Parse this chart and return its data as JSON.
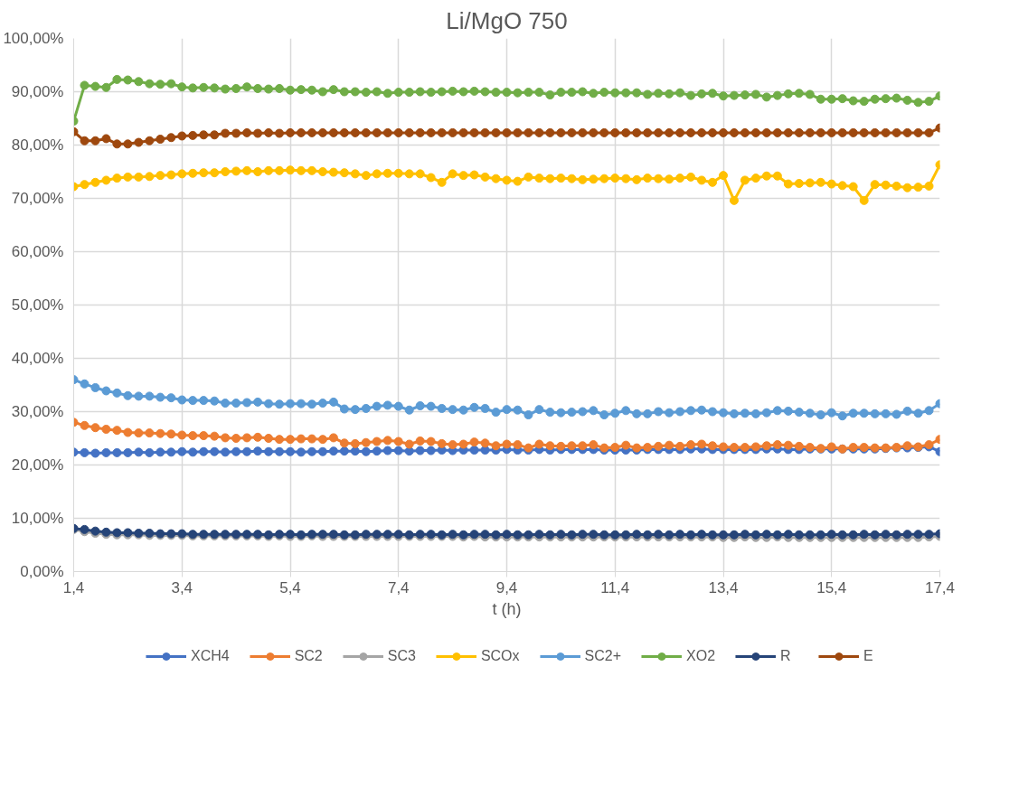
{
  "chart_data": {
    "type": "line",
    "title": "Li/MgO 750",
    "xlabel": "t (h)",
    "x": [
      1.4,
      1.6,
      1.8,
      2.0,
      2.2,
      2.4,
      2.6,
      2.8,
      3.0,
      3.2,
      3.4,
      3.6,
      3.8,
      4.0,
      4.2,
      4.4,
      4.6,
      4.8,
      5.0,
      5.2,
      5.4,
      5.6,
      5.8,
      6.0,
      6.2,
      6.4,
      6.6,
      6.8,
      7.0,
      7.2,
      7.4,
      7.6,
      7.8,
      8.0,
      8.2,
      8.4,
      8.6,
      8.8,
      9.0,
      9.2,
      9.4,
      9.6,
      9.8,
      10.0,
      10.2,
      10.4,
      10.6,
      10.8,
      11.0,
      11.2,
      11.4,
      11.6,
      11.8,
      12.0,
      12.2,
      12.4,
      12.6,
      12.8,
      13.0,
      13.2,
      13.4,
      13.6,
      13.8,
      14.0,
      14.2,
      14.4,
      14.6,
      14.8,
      15.0,
      15.2,
      15.4,
      15.6,
      15.8,
      16.0,
      16.2,
      16.4,
      16.6,
      16.8,
      17.0,
      17.2,
      17.4
    ],
    "series": [
      {
        "name": "XCH4",
        "color": "#4472c4",
        "values": [
          22.4,
          22.3,
          22.2,
          22.3,
          22.3,
          22.3,
          22.4,
          22.3,
          22.4,
          22.4,
          22.5,
          22.4,
          22.5,
          22.5,
          22.4,
          22.5,
          22.5,
          22.6,
          22.5,
          22.5,
          22.5,
          22.4,
          22.5,
          22.5,
          22.6,
          22.6,
          22.6,
          22.5,
          22.6,
          22.7,
          22.7,
          22.6,
          22.7,
          22.7,
          22.8,
          22.7,
          22.8,
          22.8,
          22.8,
          22.8,
          22.9,
          22.8,
          22.8,
          22.9,
          22.8,
          22.9,
          22.9,
          22.9,
          22.9,
          22.8,
          22.8,
          22.8,
          22.8,
          22.9,
          22.9,
          22.9,
          22.9,
          23.0,
          23.0,
          22.9,
          22.9,
          22.9,
          22.9,
          22.9,
          23.0,
          23.0,
          22.9,
          22.9,
          23.0,
          23.0,
          23.0,
          23.0,
          23.0,
          23.0,
          23.0,
          23.1,
          23.2,
          23.2,
          23.3,
          23.4,
          22.5
        ]
      },
      {
        "name": "SC2",
        "color": "#ed7d31",
        "values": [
          28.0,
          27.4,
          27.0,
          26.7,
          26.5,
          26.1,
          26.0,
          26.0,
          25.9,
          25.8,
          25.6,
          25.5,
          25.5,
          25.4,
          25.1,
          25.0,
          25.1,
          25.2,
          25.0,
          24.8,
          24.8,
          24.9,
          24.9,
          24.8,
          25.1,
          24.1,
          24.0,
          24.2,
          24.4,
          24.6,
          24.4,
          23.9,
          24.5,
          24.4,
          24.0,
          23.8,
          23.9,
          24.3,
          24.1,
          23.6,
          23.9,
          23.8,
          23.2,
          23.9,
          23.6,
          23.5,
          23.6,
          23.6,
          23.8,
          23.2,
          23.3,
          23.7,
          23.2,
          23.3,
          23.5,
          23.7,
          23.5,
          23.8,
          23.9,
          23.6,
          23.4,
          23.3,
          23.3,
          23.4,
          23.6,
          23.8,
          23.7,
          23.5,
          23.3,
          23.1,
          23.4,
          23.0,
          23.3,
          23.3,
          23.2,
          23.2,
          23.3,
          23.6,
          23.4,
          23.8,
          24.8
        ]
      },
      {
        "name": "SC3",
        "color": "#a5a5a5",
        "values": [
          7.9,
          7.5,
          7.2,
          7.0,
          6.9,
          6.9,
          6.9,
          6.8,
          6.8,
          6.8,
          6.8,
          6.7,
          6.7,
          6.7,
          6.7,
          6.7,
          6.7,
          6.7,
          6.6,
          6.7,
          6.6,
          6.6,
          6.7,
          6.6,
          6.6,
          6.6,
          6.6,
          6.6,
          6.6,
          6.6,
          6.6,
          6.6,
          6.6,
          6.6,
          6.6,
          6.6,
          6.5,
          6.6,
          6.5,
          6.5,
          6.5,
          6.5,
          6.5,
          6.5,
          6.5,
          6.5,
          6.5,
          6.5,
          6.5,
          6.5,
          6.5,
          6.5,
          6.5,
          6.5,
          6.5,
          6.5,
          6.5,
          6.5,
          6.5,
          6.5,
          6.4,
          6.4,
          6.5,
          6.4,
          6.4,
          6.5,
          6.4,
          6.4,
          6.4,
          6.4,
          6.4,
          6.4,
          6.4,
          6.4,
          6.4,
          6.4,
          6.4,
          6.4,
          6.4,
          6.5,
          6.6
        ]
      },
      {
        "name": "SCOx",
        "color": "#ffc000",
        "values": [
          72.2,
          72.6,
          73.0,
          73.4,
          73.8,
          74.0,
          74.0,
          74.1,
          74.3,
          74.4,
          74.6,
          74.7,
          74.8,
          74.8,
          75.0,
          75.1,
          75.2,
          75.0,
          75.2,
          75.2,
          75.3,
          75.2,
          75.2,
          75.0,
          74.9,
          74.8,
          74.6,
          74.3,
          74.6,
          74.7,
          74.7,
          74.6,
          74.6,
          73.9,
          73.0,
          74.6,
          74.3,
          74.4,
          74.0,
          73.7,
          73.4,
          73.2,
          74.0,
          73.8,
          73.7,
          73.8,
          73.7,
          73.5,
          73.6,
          73.7,
          73.8,
          73.7,
          73.5,
          73.8,
          73.7,
          73.6,
          73.8,
          74.0,
          73.4,
          73.0,
          74.3,
          69.6,
          73.4,
          73.8,
          74.2,
          74.2,
          72.7,
          72.8,
          72.9,
          73.0,
          72.7,
          72.4,
          72.2,
          69.6,
          72.6,
          72.5,
          72.3,
          72.0,
          72.1,
          72.3,
          76.3
        ]
      },
      {
        "name": "SC2+",
        "color": "#5b9bd5",
        "values": [
          36.0,
          35.2,
          34.5,
          33.9,
          33.5,
          33.0,
          32.9,
          32.9,
          32.7,
          32.6,
          32.2,
          32.1,
          32.1,
          32.0,
          31.6,
          31.6,
          31.7,
          31.8,
          31.5,
          31.4,
          31.5,
          31.5,
          31.4,
          31.6,
          31.8,
          30.5,
          30.4,
          30.6,
          31.0,
          31.2,
          31.0,
          30.3,
          31.1,
          31.0,
          30.6,
          30.4,
          30.3,
          30.8,
          30.6,
          29.9,
          30.4,
          30.3,
          29.4,
          30.4,
          29.9,
          29.8,
          29.9,
          30.0,
          30.2,
          29.4,
          29.7,
          30.2,
          29.6,
          29.6,
          30.0,
          29.8,
          30.0,
          30.2,
          30.3,
          30.0,
          29.8,
          29.6,
          29.7,
          29.6,
          29.8,
          30.2,
          30.1,
          29.9,
          29.7,
          29.4,
          29.8,
          29.2,
          29.7,
          29.7,
          29.6,
          29.6,
          29.5,
          30.1,
          29.7,
          30.2,
          31.5
        ]
      },
      {
        "name": "XO2",
        "color": "#70ad47",
        "values": [
          84.5,
          91.2,
          91.0,
          90.8,
          92.3,
          92.2,
          91.9,
          91.5,
          91.4,
          91.5,
          90.9,
          90.7,
          90.8,
          90.7,
          90.5,
          90.6,
          90.9,
          90.6,
          90.5,
          90.6,
          90.3,
          90.4,
          90.3,
          90.0,
          90.4,
          90.0,
          90.0,
          89.9,
          90.0,
          89.7,
          89.9,
          89.9,
          90.0,
          89.9,
          90.0,
          90.1,
          90.0,
          90.1,
          90.0,
          89.9,
          89.9,
          89.8,
          89.9,
          89.9,
          89.4,
          89.9,
          89.9,
          90.0,
          89.7,
          89.9,
          89.8,
          89.8,
          89.8,
          89.5,
          89.7,
          89.6,
          89.8,
          89.3,
          89.6,
          89.7,
          89.2,
          89.3,
          89.4,
          89.5,
          89.0,
          89.3,
          89.6,
          89.7,
          89.5,
          88.6,
          88.6,
          88.7,
          88.3,
          88.2,
          88.6,
          88.7,
          88.8,
          88.4,
          88.0,
          88.2,
          89.2
        ]
      },
      {
        "name": "R",
        "color": "#264478",
        "values": [
          8.1,
          7.9,
          7.6,
          7.4,
          7.3,
          7.3,
          7.2,
          7.2,
          7.1,
          7.1,
          7.1,
          7.0,
          7.0,
          7.0,
          7.0,
          7.0,
          7.0,
          7.0,
          6.9,
          7.0,
          7.0,
          6.9,
          7.0,
          7.0,
          7.0,
          6.9,
          6.9,
          7.0,
          7.0,
          7.0,
          7.0,
          6.9,
          7.0,
          7.0,
          6.9,
          7.0,
          6.9,
          7.0,
          7.0,
          6.9,
          7.0,
          6.9,
          6.9,
          7.0,
          6.9,
          7.0,
          6.9,
          7.0,
          7.0,
          6.9,
          6.9,
          6.9,
          7.0,
          6.9,
          7.0,
          6.9,
          7.0,
          6.9,
          7.0,
          6.9,
          6.9,
          6.9,
          7.0,
          6.9,
          7.0,
          6.9,
          7.0,
          6.9,
          6.9,
          6.9,
          7.0,
          6.9,
          6.9,
          7.0,
          6.9,
          7.0,
          6.9,
          7.0,
          7.0,
          7.0,
          7.1
        ]
      },
      {
        "name": "E",
        "color": "#9e480e",
        "values": [
          82.5,
          80.8,
          80.8,
          81.2,
          80.2,
          80.2,
          80.5,
          80.8,
          81.1,
          81.4,
          81.7,
          81.8,
          81.9,
          81.9,
          82.2,
          82.2,
          82.3,
          82.2,
          82.3,
          82.2,
          82.3,
          82.3,
          82.3,
          82.3,
          82.3,
          82.3,
          82.3,
          82.3,
          82.3,
          82.3,
          82.3,
          82.3,
          82.3,
          82.3,
          82.3,
          82.3,
          82.3,
          82.3,
          82.3,
          82.3,
          82.3,
          82.3,
          82.3,
          82.3,
          82.3,
          82.3,
          82.3,
          82.3,
          82.3,
          82.3,
          82.3,
          82.3,
          82.3,
          82.3,
          82.3,
          82.3,
          82.3,
          82.3,
          82.3,
          82.3,
          82.3,
          82.3,
          82.3,
          82.3,
          82.3,
          82.3,
          82.3,
          82.3,
          82.3,
          82.3,
          82.3,
          82.3,
          82.3,
          82.3,
          82.3,
          82.3,
          82.3,
          82.3,
          82.3,
          82.3,
          83.2
        ]
      }
    ],
    "xlim": [
      1.4,
      17.4
    ],
    "xticks": [
      {
        "value": 1.4,
        "label": "1,4"
      },
      {
        "value": 3.4,
        "label": "3,4"
      },
      {
        "value": 5.4,
        "label": "5,4"
      },
      {
        "value": 7.4,
        "label": "7,4"
      },
      {
        "value": 9.4,
        "label": "9,4"
      },
      {
        "value": 11.4,
        "label": "11,4"
      },
      {
        "value": 13.4,
        "label": "13,4"
      },
      {
        "value": 15.4,
        "label": "15,4"
      },
      {
        "value": 17.4,
        "label": "17,4"
      }
    ],
    "ylim": [
      0,
      100
    ],
    "yticks": [
      {
        "value": 0,
        "label": "0,00%"
      },
      {
        "value": 10,
        "label": "10,00%"
      },
      {
        "value": 20,
        "label": "20,00%"
      },
      {
        "value": 30,
        "label": "30,00%"
      },
      {
        "value": 40,
        "label": "40,00%"
      },
      {
        "value": 50,
        "label": "50,00%"
      },
      {
        "value": 60,
        "label": "60,00%"
      },
      {
        "value": 70,
        "label": "70,00%"
      },
      {
        "value": 80,
        "label": "80,00%"
      },
      {
        "value": 90,
        "label": "90,00%"
      },
      {
        "value": 100,
        "label": "100,00%"
      }
    ],
    "grid": true,
    "legend": "bottom",
    "marker": "circle",
    "line_style": "solid"
  }
}
